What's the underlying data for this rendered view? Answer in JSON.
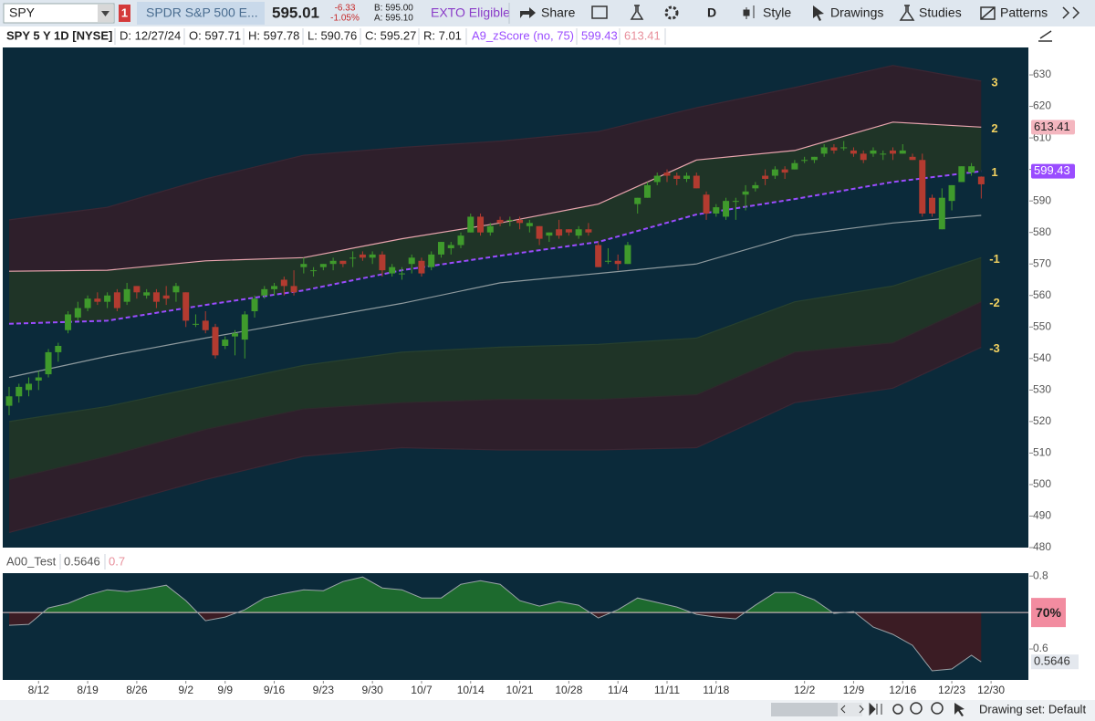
{
  "toolbar": {
    "symbol": "SPY",
    "badge": "1",
    "description": "SPDR S&P 500 E...",
    "last": "595.01",
    "change": "-6.33",
    "change_pct": "-1.05%",
    "bid": "B: 595.00",
    "ask": "A: 595.10",
    "exto": "EXTO Eligible",
    "share": "Share",
    "aggregation": "D",
    "style": "Style",
    "drawings": "Drawings",
    "studies": "Studies",
    "patterns": "Patterns"
  },
  "status_bar": {
    "drawing_set": "Drawing set: Default"
  },
  "chart_data": [
    {
      "type": "candlestick",
      "title": "SPY 5 Y 1D [NYSE]",
      "legend": [
        "D: 12/27/24",
        "O: 597.71",
        "H: 597.78",
        "L: 590.76",
        "C: 595.27",
        "R: 7.01"
      ],
      "study": "A9_zScore (no, 75)",
      "open": [
        525,
        528,
        530,
        533,
        535,
        542,
        549,
        553,
        556,
        559,
        558,
        561,
        558,
        563,
        560,
        561,
        560,
        561,
        561,
        551,
        552,
        550,
        544,
        547,
        546,
        555,
        560,
        562,
        565,
        563,
        569,
        568,
        569,
        570,
        571,
        572,
        573,
        572,
        573,
        567,
        567,
        570,
        571,
        569,
        573,
        575,
        576,
        580,
        585,
        580,
        584,
        584,
        584,
        582,
        582,
        579,
        581,
        581,
        579,
        581,
        576,
        571,
        571,
        570,
        589,
        591,
        596,
        599,
        598,
        597,
        598,
        592,
        586,
        585,
        590,
        592,
        594,
        598,
        598,
        600,
        600,
        603,
        603,
        605,
        607,
        607,
        606,
        605,
        605,
        605,
        606,
        605,
        604,
        603,
        591,
        581,
        590,
        596,
        599,
        597.71
      ],
      "high": [
        531,
        532,
        534,
        536,
        543,
        545,
        555,
        558,
        560,
        561,
        561,
        562,
        564,
        563,
        562,
        562,
        563,
        564,
        561,
        554,
        555,
        551,
        547,
        549,
        555,
        560,
        563,
        564,
        566,
        568,
        572,
        569,
        570,
        572,
        571,
        574,
        574,
        574,
        574,
        570,
        569,
        573,
        572,
        574,
        577,
        577,
        580,
        586,
        586,
        583,
        585,
        585,
        585,
        584,
        582,
        580,
        584,
        581,
        582,
        583,
        577,
        575,
        573,
        577,
        591,
        596,
        599,
        600,
        599,
        599,
        599,
        593,
        589,
        591,
        591,
        595,
        596,
        600,
        601,
        601,
        603,
        604,
        604,
        608,
        608,
        609,
        607,
        606,
        607,
        606,
        607,
        608,
        605,
        605,
        592,
        594,
        595,
        601,
        602,
        597.78
      ],
      "low": [
        522,
        526,
        528,
        530,
        534,
        539,
        548,
        552,
        555,
        557,
        556,
        555,
        557,
        559,
        559,
        556,
        557,
        558,
        550,
        550,
        548,
        540,
        543,
        541,
        540,
        553,
        559,
        560,
        560,
        560,
        567,
        566,
        568,
        568,
        569,
        569,
        571,
        570,
        566,
        566,
        565,
        567,
        566,
        568,
        572,
        573,
        575,
        580,
        579,
        579,
        582,
        582,
        581,
        580,
        576,
        577,
        578,
        579,
        578,
        579,
        569,
        570,
        568,
        570,
        586,
        591,
        595,
        596,
        595,
        596,
        594,
        584,
        585,
        584,
        584,
        587,
        593,
        595,
        597,
        597,
        600,
        602,
        602,
        604,
        605,
        606,
        604,
        602,
        604,
        603,
        603,
        605,
        603,
        585,
        585,
        581,
        587,
        596,
        598,
        590.76
      ],
      "close": [
        528,
        531,
        532,
        534,
        542,
        544,
        554,
        556,
        559,
        558,
        560,
        556,
        562,
        561,
        561,
        558,
        559,
        563,
        552,
        551,
        549,
        541,
        546,
        548,
        554,
        559,
        562,
        563,
        563,
        561,
        570,
        568,
        570,
        571,
        570,
        572,
        572,
        573,
        568,
        569,
        567,
        572,
        567,
        573,
        577,
        576,
        579,
        585,
        580,
        582,
        583,
        584,
        583,
        583,
        578,
        580,
        579,
        580,
        581,
        580,
        569,
        571,
        570,
        576,
        591,
        595,
        598,
        598,
        597,
        598,
        594,
        586,
        588,
        590,
        590,
        593,
        595,
        597,
        600,
        599,
        602,
        603,
        604,
        607,
        606,
        607,
        605,
        603,
        606,
        605,
        605,
        606,
        603,
        586,
        586,
        591,
        595,
        601,
        601,
        595.27
      ],
      "up_color": "#3f9a2c",
      "down_color": "#b33b30",
      "xlim": [
        -0.65,
        103.8
      ],
      "xticks": [
        {
          "value": 3,
          "label": "8/12"
        },
        {
          "value": 8,
          "label": "8/19"
        },
        {
          "value": 13,
          "label": "8/26"
        },
        {
          "value": 18,
          "label": "9/2"
        },
        {
          "value": 22,
          "label": "9/9"
        },
        {
          "value": 27,
          "label": "9/16"
        },
        {
          "value": 32,
          "label": "9/23"
        },
        {
          "value": 37,
          "label": "9/30"
        },
        {
          "value": 42,
          "label": "10/7"
        },
        {
          "value": 47,
          "label": "10/14"
        },
        {
          "value": 52,
          "label": "10/21"
        },
        {
          "value": 57,
          "label": "10/28"
        },
        {
          "value": 62,
          "label": "11/4"
        },
        {
          "value": 67,
          "label": "11/11"
        },
        {
          "value": 72,
          "label": "11/18"
        },
        {
          "value": 81,
          "label": "12/2"
        },
        {
          "value": 86,
          "label": "12/9"
        },
        {
          "value": 91,
          "label": "12/16"
        },
        {
          "value": 96,
          "label": "12/23"
        },
        {
          "value": 100,
          "label": "12/30"
        }
      ],
      "ylim": [
        480,
        638.7
      ],
      "yticks": [
        480,
        490,
        500,
        510,
        520,
        530,
        540,
        550,
        560,
        570,
        580,
        590,
        600,
        610,
        620,
        630
      ],
      "bands": [
        {
          "name": "3",
          "color": "#3a2734",
          "fill": "#2e1f2b",
          "x": [
            0,
            10,
            20,
            30,
            40,
            50,
            60,
            70,
            80,
            90,
            99
          ],
          "values": [
            584,
            588,
            597,
            604.5,
            607,
            609,
            612,
            619.6,
            626,
            633,
            628
          ]
        },
        {
          "name": "2",
          "color": "#e8a5ae",
          "fill": "#1f3427",
          "x": [
            0,
            10,
            20,
            30,
            40,
            50,
            60,
            70,
            80,
            90,
            99
          ],
          "values": [
            567.7,
            568,
            571,
            572,
            578,
            583,
            589,
            603,
            606,
            615,
            613.41
          ]
        },
        {
          "name": "1",
          "color": "#9a4cff",
          "dashed": true,
          "x": [
            0,
            10,
            20,
            30,
            40,
            50,
            60,
            70,
            80,
            90,
            99
          ],
          "values": [
            551,
            552,
            557,
            561.6,
            568,
            572.6,
            577,
            585.7,
            590.6,
            596,
            599.43
          ]
        },
        {
          "color": "#8e9a9e",
          "x": [
            0,
            10,
            20,
            30,
            40,
            50,
            60,
            70,
            80,
            90,
            99
          ],
          "values": [
            534,
            540.7,
            546.5,
            552,
            557.5,
            564,
            567,
            570,
            579,
            583,
            585.4
          ]
        },
        {
          "name": "-1",
          "color": "#27402f",
          "fill": "#1f3427",
          "x": [
            0,
            10,
            20,
            30,
            40,
            50,
            60,
            70,
            80,
            90,
            99
          ],
          "values": [
            520,
            524.8,
            531.4,
            537.8,
            542,
            543.6,
            544.5,
            546.5,
            558,
            563,
            572
          ]
        },
        {
          "name": "-2",
          "color": "#2e2a2c",
          "fill": "#2e1f2b",
          "x": [
            0,
            10,
            20,
            30,
            40,
            50,
            60,
            70,
            80,
            90,
            99
          ],
          "values": [
            501.6,
            509,
            517.5,
            524,
            526,
            527,
            527,
            528.5,
            542,
            545,
            558
          ]
        },
        {
          "name": "-3",
          "color": "#3a2734",
          "x": [
            0,
            10,
            20,
            30,
            40,
            50,
            60,
            70,
            80,
            90,
            99
          ],
          "values": [
            484.8,
            493,
            501.6,
            509,
            511.7,
            511,
            511,
            511.7,
            526,
            530.6,
            543.6
          ]
        }
      ]
    },
    {
      "type": "area",
      "title": "A00_Test",
      "x": [
        0,
        2,
        4,
        6,
        8,
        10,
        12,
        14,
        16,
        18,
        20,
        22,
        24,
        26,
        28,
        30,
        32,
        34,
        36,
        38,
        40,
        42,
        44,
        46,
        48,
        50,
        52,
        54,
        56,
        58,
        60,
        62,
        64,
        66,
        68,
        70,
        72,
        74,
        76,
        78,
        80,
        82,
        84,
        86,
        88,
        90,
        92,
        94,
        96,
        98,
        99
      ],
      "values": [
        0.665,
        0.6675,
        0.7125,
        0.725,
        0.7475,
        0.7625,
        0.7575,
        0.765,
        0.775,
        0.7325,
        0.6775,
        0.6875,
        0.7075,
        0.74,
        0.7525,
        0.7625,
        0.76,
        0.785,
        0.7975,
        0.7675,
        0.7625,
        0.74,
        0.74,
        0.7775,
        0.7875,
        0.7775,
        0.7325,
        0.7175,
        0.73,
        0.72,
        0.685,
        0.7075,
        0.74,
        0.7275,
        0.715,
        0.695,
        0.6875,
        0.6825,
        0.72,
        0.755,
        0.755,
        0.735,
        0.6975,
        0.7025,
        0.66,
        0.64,
        0.61,
        0.54,
        0.545,
        0.5825,
        0.5646
      ],
      "threshold": 0.7,
      "threshold_label": "70%",
      "threshold_color": "#e8c9c9",
      "color": "#9aa3a8",
      "up_fill": "#1d6a2e",
      "down_fill": "#3b1c24",
      "ylim": [
        0.515,
        0.808
      ],
      "yticks": [
        0.6,
        0.8
      ]
    }
  ]
}
